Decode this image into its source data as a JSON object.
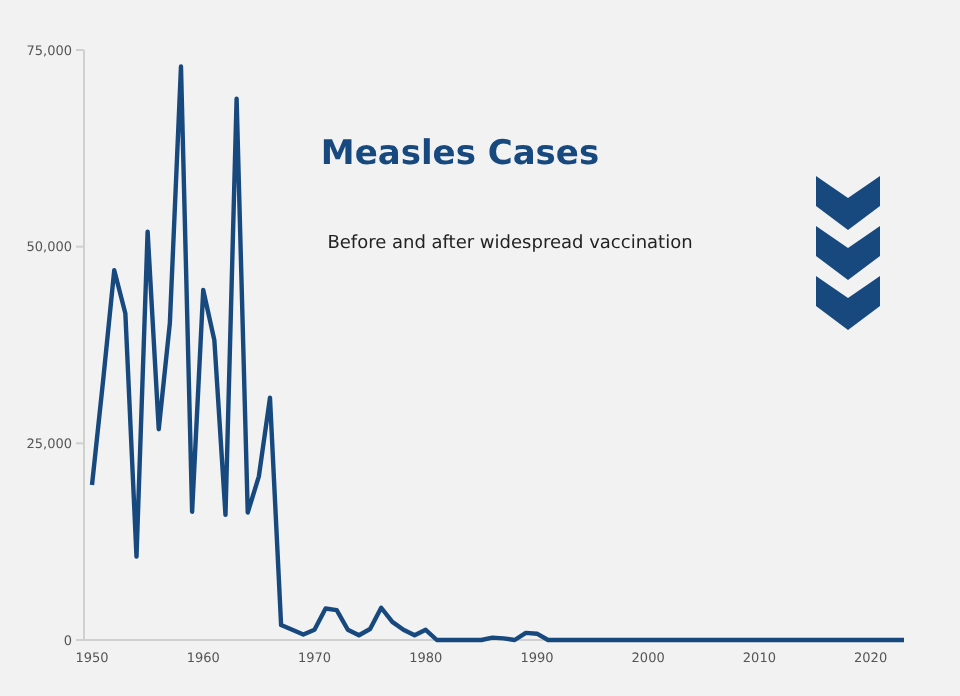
{
  "chart_data": {
    "type": "line",
    "title": "Measles Cases",
    "subtitle": "Before and after widespread vaccination",
    "x": [
      1950,
      1951,
      1952,
      1953,
      1954,
      1955,
      1956,
      1957,
      1958,
      1959,
      1960,
      1961,
      1962,
      1963,
      1964,
      1965,
      1966,
      1967,
      1968,
      1969,
      1970,
      1971,
      1972,
      1973,
      1974,
      1975,
      1976,
      1977,
      1978,
      1979,
      1980,
      1981,
      1982,
      1983,
      1984,
      1985,
      1986,
      1987,
      1988,
      1989,
      1990,
      1991,
      1992,
      1993,
      1994,
      1995,
      1996,
      1997,
      1998,
      1999,
      2000,
      2001,
      2002,
      2003,
      2004,
      2005,
      2006,
      2007,
      2008,
      2009,
      2010,
      2011,
      2012,
      2013,
      2014,
      2015,
      2016,
      2017,
      2018,
      2019,
      2020,
      2021,
      2022,
      2023
    ],
    "series": [
      {
        "color": "#17497e",
        "values": [
          19700,
          33000,
          47000,
          41500,
          10600,
          51900,
          26800,
          40300,
          72900,
          16300,
          44500,
          38100,
          15900,
          68800,
          16200,
          20800,
          30800,
          1900,
          1300,
          700,
          1300,
          4000,
          3800,
          1300,
          600,
          1400,
          4100,
          2300,
          1300,
          600,
          1300,
          0,
          0,
          0,
          0,
          0,
          300,
          200,
          0,
          900,
          800,
          0,
          0,
          0,
          0,
          0,
          0,
          0,
          0,
          0,
          0,
          0,
          0,
          0,
          0,
          0,
          0,
          0,
          0,
          0,
          0,
          0,
          0,
          0,
          0,
          0,
          0,
          0,
          0,
          0,
          0,
          0,
          0,
          0
        ]
      }
    ],
    "xlim": [
      1950,
      2023
    ],
    "xticks": [
      1950,
      1960,
      1970,
      1980,
      1990,
      2000,
      2010,
      2020
    ],
    "ylim": [
      0,
      75000
    ],
    "yticks": [
      0,
      {
        "value": 25000,
        "label": "25,000"
      },
      {
        "value": 50000,
        "label": "50,000"
      },
      {
        "value": 75000,
        "label": "75,000"
      }
    ],
    "marker": "none",
    "line_style": "solid"
  }
}
